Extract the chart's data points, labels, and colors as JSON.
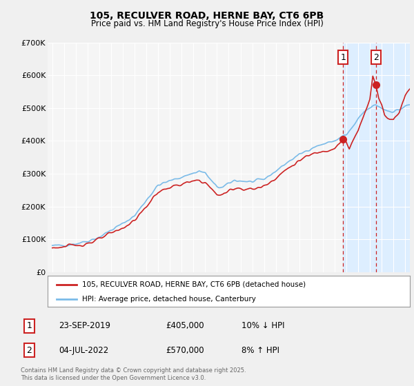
{
  "title": "105, RECULVER ROAD, HERNE BAY, CT6 6PB",
  "subtitle": "Price paid vs. HM Land Registry's House Price Index (HPI)",
  "ylim": [
    0,
    700000
  ],
  "yticks": [
    0,
    100000,
    200000,
    300000,
    400000,
    500000,
    600000,
    700000
  ],
  "ytick_labels": [
    "£0",
    "£100K",
    "£200K",
    "£300K",
    "£400K",
    "£500K",
    "£600K",
    "£700K"
  ],
  "xlim_left": 1994.6,
  "xlim_right": 2025.4,
  "hpi_color": "#7abbe8",
  "price_color": "#cc2222",
  "shade_color": "#ddeeff",
  "marker1_date": 2019.73,
  "marker1_price": 405000,
  "marker2_date": 2022.5,
  "marker2_price": 570000,
  "legend_line1": "105, RECULVER ROAD, HERNE BAY, CT6 6PB (detached house)",
  "legend_line2": "HPI: Average price, detached house, Canterbury",
  "footer": "Contains HM Land Registry data © Crown copyright and database right 2025.\nThis data is licensed under the Open Government Licence v3.0.",
  "plot_bg": "#f5f5f5",
  "fig_bg": "#f0f0f0",
  "grid_color": "#ffffff",
  "table_row1": [
    "1",
    "23-SEP-2019",
    "£405,000",
    "10% ↓ HPI"
  ],
  "table_row2": [
    "2",
    "04-JUL-2022",
    "£570,000",
    "8% ↑ HPI"
  ]
}
